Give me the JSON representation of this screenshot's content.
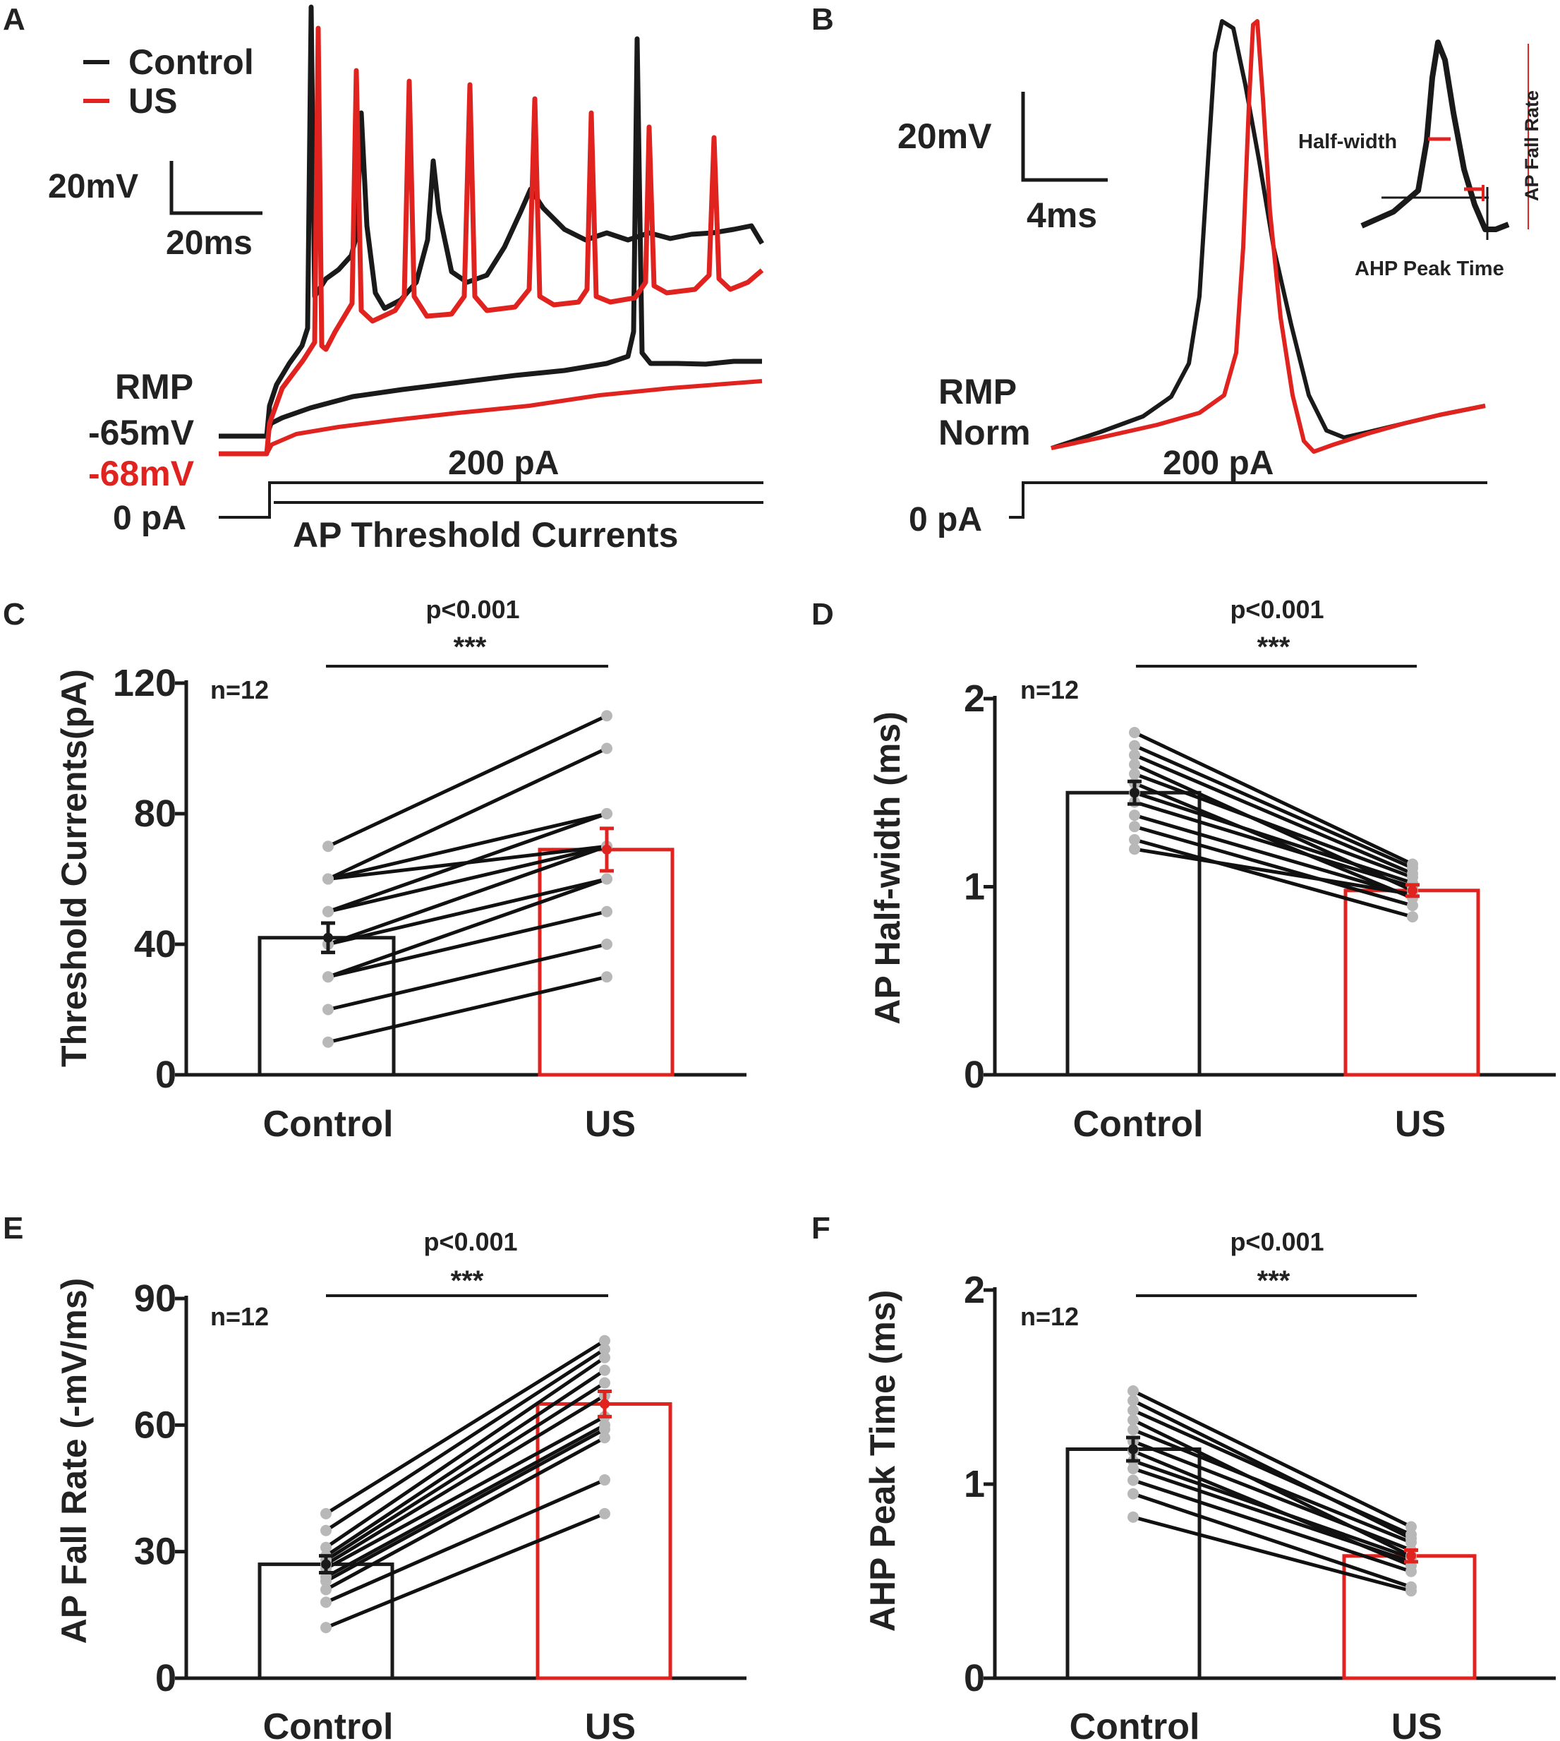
{
  "colors": {
    "control": "#1a1a1a",
    "us": "#e0231f",
    "dot": "#b8b8b8",
    "error": "#1a1a1a"
  },
  "panel_letters": [
    "A",
    "B",
    "C",
    "D",
    "E",
    "F"
  ],
  "panelA": {
    "legend": [
      "Control",
      "US"
    ],
    "scale_v": "20mV",
    "scale_t": "20ms",
    "rmp_label": "RMP",
    "rmp_control": "-65mV",
    "rmp_us": "-68mV",
    "current_top": "200 pA",
    "current_zero": "0 pA",
    "current_caption": "AP Threshold Currents"
  },
  "panelB": {
    "scale_v": "20mV",
    "scale_t": "4ms",
    "rmp_label": "RMP",
    "norm_label": "Norm",
    "current_top": "200 pA",
    "current_zero": "0 pA",
    "inset": {
      "half_width": "Half-width",
      "fall_rate": "AP Fall Rate",
      "ahp_time": "AHP Peak Time"
    }
  },
  "chart_data": [
    {
      "panel": "C",
      "type": "bar",
      "categories": [
        "Control",
        "US"
      ],
      "values": [
        42,
        69
      ],
      "errors": [
        4.5,
        6.5
      ],
      "ylabel": "Threshold Currents(pA)",
      "ylim": [
        0,
        120
      ],
      "yticks": [
        0,
        40,
        80,
        120
      ],
      "n_label": "n=12",
      "p_label": "p<0.001",
      "stars": "***",
      "pairs": [
        [
          10,
          30
        ],
        [
          20,
          40
        ],
        [
          30,
          50
        ],
        [
          30,
          60
        ],
        [
          40,
          70
        ],
        [
          40,
          60
        ],
        [
          50,
          70
        ],
        [
          50,
          80
        ],
        [
          60,
          70
        ],
        [
          60,
          80
        ],
        [
          60,
          100
        ],
        [
          70,
          110
        ]
      ]
    },
    {
      "panel": "D",
      "type": "bar",
      "categories": [
        "Control",
        "US"
      ],
      "values": [
        1.5,
        0.98
      ],
      "errors": [
        0.06,
        0.03
      ],
      "ylabel": "AP Half-width (ms)",
      "ylim": [
        0,
        2
      ],
      "yticks": [
        0,
        1,
        2
      ],
      "n_label": "n=12",
      "p_label": "p<0.001",
      "stars": "***",
      "pairs": [
        [
          1.2,
          0.96
        ],
        [
          1.25,
          0.84
        ],
        [
          1.32,
          0.9
        ],
        [
          1.38,
          0.95
        ],
        [
          1.45,
          1.0
        ],
        [
          1.5,
          1.02
        ],
        [
          1.55,
          0.94
        ],
        [
          1.6,
          1.05
        ],
        [
          1.65,
          0.98
        ],
        [
          1.7,
          1.07
        ],
        [
          1.75,
          1.1
        ],
        [
          1.82,
          1.12
        ]
      ]
    },
    {
      "panel": "E",
      "type": "bar",
      "categories": [
        "Control",
        "US"
      ],
      "values": [
        27,
        65
      ],
      "errors": [
        2,
        3
      ],
      "ylabel": "AP Fall Rate (-mV/ms)",
      "ylim": [
        0,
        90
      ],
      "yticks": [
        0,
        30,
        60,
        90
      ],
      "n_label": "n=12",
      "p_label": "p<0.001",
      "stars": "***",
      "pairs": [
        [
          12,
          39
        ],
        [
          18,
          47
        ],
        [
          21,
          57
        ],
        [
          23,
          59
        ],
        [
          24,
          60
        ],
        [
          26,
          62
        ],
        [
          27,
          67
        ],
        [
          28,
          70
        ],
        [
          29,
          73
        ],
        [
          31,
          76
        ],
        [
          35,
          78
        ],
        [
          39,
          80
        ]
      ]
    },
    {
      "panel": "F",
      "type": "bar",
      "categories": [
        "Control",
        "US"
      ],
      "values": [
        1.18,
        0.63
      ],
      "errors": [
        0.06,
        0.03
      ],
      "ylabel": "AHP Peak Time (ms)",
      "ylim": [
        0,
        2
      ],
      "yticks": [
        0,
        1,
        2
      ],
      "n_label": "n=12",
      "p_label": "p<0.001",
      "stars": "***",
      "pairs": [
        [
          0.83,
          0.45
        ],
        [
          0.95,
          0.47
        ],
        [
          1.02,
          0.55
        ],
        [
          1.08,
          0.6
        ],
        [
          1.12,
          0.62
        ],
        [
          1.17,
          0.58
        ],
        [
          1.22,
          0.66
        ],
        [
          1.28,
          0.7
        ],
        [
          1.33,
          0.63
        ],
        [
          1.38,
          0.74
        ],
        [
          1.43,
          0.72
        ],
        [
          1.48,
          0.78
        ]
      ]
    }
  ]
}
